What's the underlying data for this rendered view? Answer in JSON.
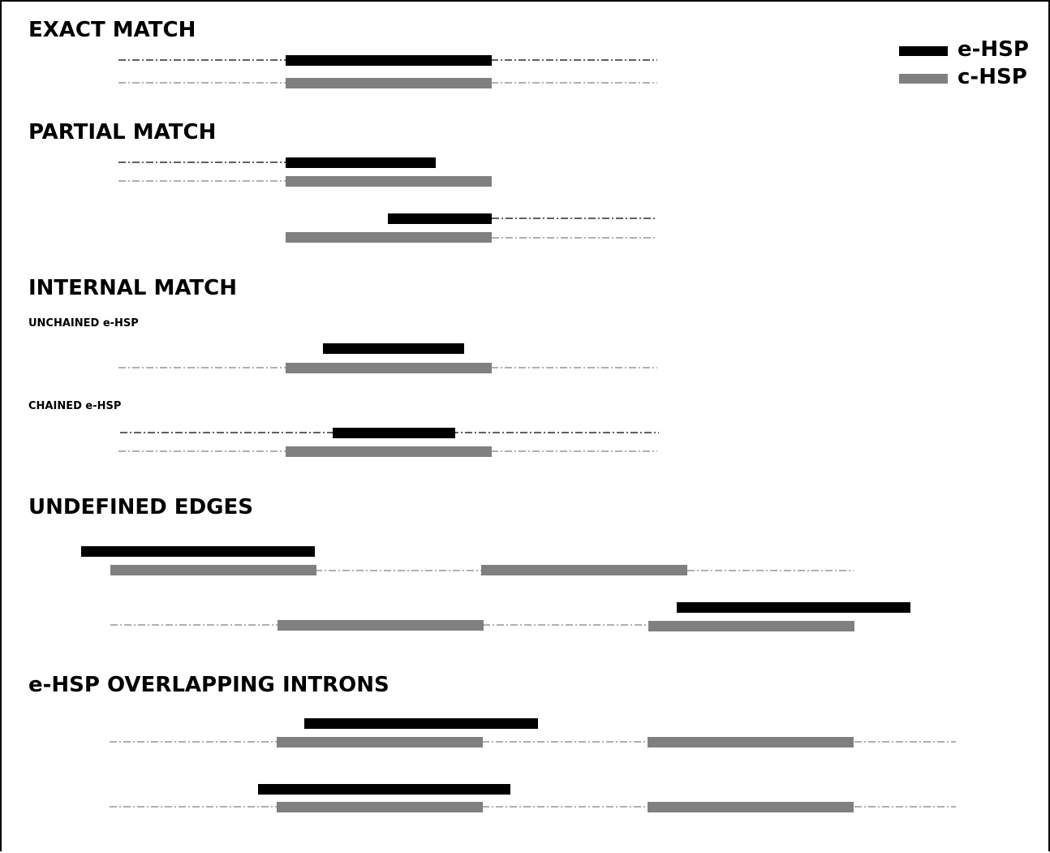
{
  "sections": {
    "exact": "EXACT MATCH",
    "partial": "PARTIAL MATCH",
    "internal": "INTERNAL MATCH",
    "unchained": "UNCHAINED e-HSP",
    "chained": "CHAINED e-HSP",
    "undefined": "UNDEFINED EDGES",
    "overlapping": "e-HSP OVERLAPPING INTRONS"
  },
  "legend": {
    "items": [
      {
        "label": "e-HSP",
        "color": "#000000"
      },
      {
        "label": "c-HSP",
        "color": "#808080"
      }
    ]
  },
  "colors": {
    "e_hsp": "#000000",
    "c_hsp": "#808080"
  }
}
